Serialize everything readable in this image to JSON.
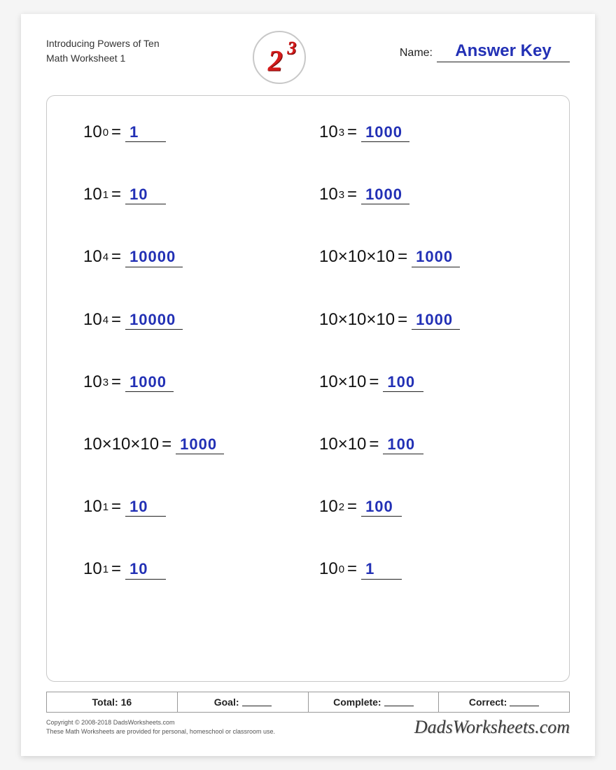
{
  "header": {
    "title_line1": "Introducing Powers of Ten",
    "title_line2": "Math Worksheet 1",
    "name_label": "Name:",
    "name_value": "Answer Key",
    "logo_base": "2",
    "logo_exp": "3"
  },
  "colors": {
    "answer_color": "#2230b5",
    "logo_color": "#d41b1b",
    "border_color": "#c8c8c8",
    "text_color": "#111111",
    "background": "#ffffff"
  },
  "problems": [
    {
      "type": "power",
      "base": "10",
      "exp": "0",
      "answer": "1"
    },
    {
      "type": "power",
      "base": "10",
      "exp": "3",
      "answer": "1000"
    },
    {
      "type": "power",
      "base": "10",
      "exp": "1",
      "answer": "10"
    },
    {
      "type": "power",
      "base": "10",
      "exp": "3",
      "answer": "1000"
    },
    {
      "type": "power",
      "base": "10",
      "exp": "4",
      "answer": "10000"
    },
    {
      "type": "mult",
      "expr": "10×10×10",
      "answer": "1000"
    },
    {
      "type": "power",
      "base": "10",
      "exp": "4",
      "answer": "10000"
    },
    {
      "type": "mult",
      "expr": "10×10×10",
      "answer": "1000"
    },
    {
      "type": "power",
      "base": "10",
      "exp": "3",
      "answer": "1000"
    },
    {
      "type": "mult",
      "expr": "10×10",
      "answer": "100"
    },
    {
      "type": "mult",
      "expr": "10×10×10",
      "answer": "1000"
    },
    {
      "type": "mult",
      "expr": "10×10",
      "answer": "100"
    },
    {
      "type": "power",
      "base": "10",
      "exp": "1",
      "answer": "10"
    },
    {
      "type": "power",
      "base": "10",
      "exp": "2",
      "answer": "100"
    },
    {
      "type": "power",
      "base": "10",
      "exp": "1",
      "answer": "10"
    },
    {
      "type": "power",
      "base": "10",
      "exp": "0",
      "answer": "1"
    }
  ],
  "summary": {
    "total_label": "Total:",
    "total_value": "16",
    "goal_label": "Goal:",
    "complete_label": "Complete:",
    "correct_label": "Correct:"
  },
  "footer": {
    "copyright_line1": "Copyright © 2008-2018 DadsWorksheets.com",
    "copyright_line2": "These Math Worksheets are provided for personal, homeschool or classroom use.",
    "brand": "DadsWorksheets.com"
  }
}
